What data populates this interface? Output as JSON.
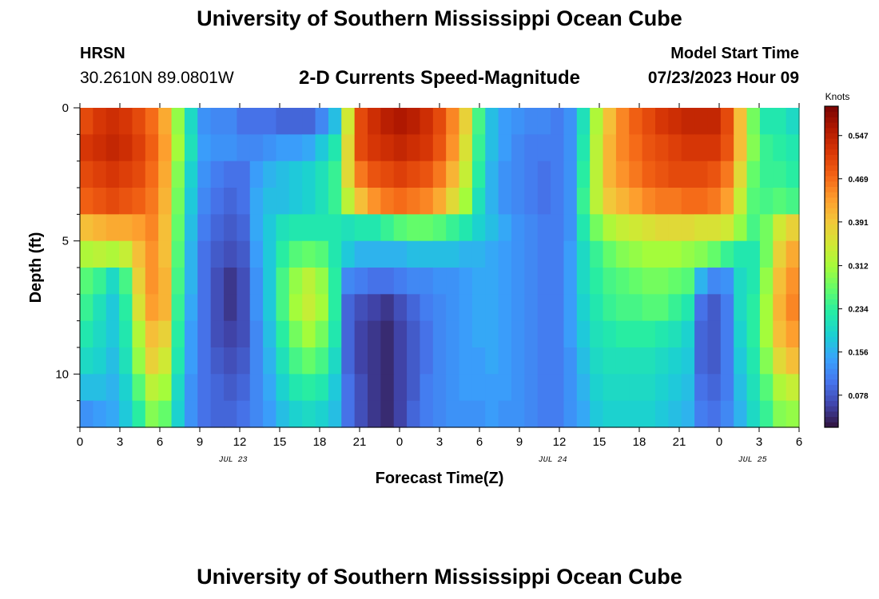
{
  "header": {
    "title": "University of Southern Mississippi Ocean Cube",
    "station": "HRSN",
    "coordinates": "30.2610N  89.0801W",
    "chart_title": "2-D Currents Speed-Magnitude",
    "model_start_label": "Model Start Time",
    "model_start_value": "07/23/2023 Hour 09"
  },
  "footer": {
    "title": "University of Southern Mississippi Ocean Cube"
  },
  "chart_data": {
    "type": "heatmap",
    "title": "2-D Currents Speed-Magnitude",
    "xlabel": "Forecast Time(Z)",
    "ylabel": "Depth (ft)",
    "colorbar_label": "Knots",
    "x_ticks": [
      "0",
      "3",
      "6",
      "9",
      "12",
      "15",
      "18",
      "21",
      "0",
      "3",
      "6",
      "9",
      "12",
      "15",
      "18",
      "21",
      "0",
      "3",
      "6"
    ],
    "x_range_hours": [
      0,
      54
    ],
    "date_labels": [
      {
        "text": "JUL 23",
        "hour": 11.5
      },
      {
        "text": "JUL 24",
        "hour": 35.5
      },
      {
        "text": "JUL 25",
        "hour": 50.5
      }
    ],
    "y_ticks": [
      0,
      5,
      10
    ],
    "y_range": [
      0,
      12
    ],
    "y_inverted": true,
    "colorbar_ticks": [
      0.078,
      0.156,
      0.234,
      0.312,
      0.391,
      0.469,
      0.547
    ],
    "colorbar_range": [
      0.02,
      0.6
    ],
    "colormap": [
      "#30123b",
      "#4145ab",
      "#4675ed",
      "#39a2fc",
      "#1bcfd4",
      "#24eca6",
      "#61fc6c",
      "#a4fc3b",
      "#d1e834",
      "#f3c63a",
      "#fe9b2d",
      "#f36315",
      "#d93806",
      "#b11901",
      "#7a0403"
    ],
    "depth_levels_ft": [
      0.5,
      1.5,
      2.5,
      3.5,
      4.5,
      5.5,
      6.5,
      7.5,
      8.5,
      9.5,
      10.5,
      11.5
    ],
    "speed_knots": [
      [
        0.5,
        0.52,
        0.53,
        0.52,
        0.5,
        0.47,
        0.42,
        0.3,
        0.2,
        0.13,
        0.12,
        0.12,
        0.1,
        0.1,
        0.1,
        0.09,
        0.09,
        0.09,
        0.12,
        0.17,
        0.35,
        0.5,
        0.53,
        0.55,
        0.56,
        0.55,
        0.53,
        0.5,
        0.45,
        0.38,
        0.25,
        0.17,
        0.14,
        0.13,
        0.12,
        0.12,
        0.11,
        0.13,
        0.21,
        0.32,
        0.4,
        0.45,
        0.48,
        0.5,
        0.52,
        0.53,
        0.54,
        0.54,
        0.54,
        0.5,
        0.4,
        0.28,
        0.22,
        0.22,
        0.2
      ],
      [
        0.52,
        0.53,
        0.54,
        0.53,
        0.51,
        0.48,
        0.43,
        0.31,
        0.21,
        0.14,
        0.13,
        0.13,
        0.12,
        0.12,
        0.13,
        0.14,
        0.14,
        0.15,
        0.18,
        0.22,
        0.37,
        0.5,
        0.52,
        0.53,
        0.54,
        0.53,
        0.52,
        0.49,
        0.44,
        0.36,
        0.24,
        0.17,
        0.14,
        0.12,
        0.11,
        0.11,
        0.11,
        0.13,
        0.22,
        0.33,
        0.41,
        0.45,
        0.47,
        0.49,
        0.5,
        0.51,
        0.52,
        0.52,
        0.52,
        0.49,
        0.4,
        0.29,
        0.24,
        0.23,
        0.22
      ],
      [
        0.5,
        0.51,
        0.52,
        0.51,
        0.5,
        0.47,
        0.42,
        0.29,
        0.19,
        0.13,
        0.11,
        0.1,
        0.1,
        0.14,
        0.16,
        0.17,
        0.18,
        0.19,
        0.21,
        0.24,
        0.37,
        0.46,
        0.49,
        0.5,
        0.51,
        0.5,
        0.49,
        0.46,
        0.41,
        0.34,
        0.23,
        0.16,
        0.13,
        0.12,
        0.11,
        0.1,
        0.11,
        0.13,
        0.23,
        0.33,
        0.41,
        0.44,
        0.46,
        0.48,
        0.49,
        0.5,
        0.5,
        0.5,
        0.49,
        0.46,
        0.37,
        0.27,
        0.24,
        0.24,
        0.23
      ],
      [
        0.48,
        0.49,
        0.5,
        0.49,
        0.48,
        0.46,
        0.41,
        0.28,
        0.18,
        0.12,
        0.1,
        0.09,
        0.1,
        0.15,
        0.17,
        0.17,
        0.18,
        0.19,
        0.21,
        0.24,
        0.33,
        0.4,
        0.44,
        0.46,
        0.47,
        0.46,
        0.45,
        0.42,
        0.37,
        0.31,
        0.21,
        0.16,
        0.13,
        0.12,
        0.11,
        0.1,
        0.11,
        0.13,
        0.24,
        0.33,
        0.39,
        0.41,
        0.43,
        0.45,
        0.46,
        0.46,
        0.47,
        0.47,
        0.46,
        0.43,
        0.34,
        0.26,
        0.25,
        0.26,
        0.25
      ],
      [
        0.4,
        0.41,
        0.42,
        0.42,
        0.43,
        0.45,
        0.4,
        0.27,
        0.17,
        0.11,
        0.09,
        0.08,
        0.09,
        0.15,
        0.18,
        0.21,
        0.22,
        0.22,
        0.22,
        0.22,
        0.21,
        0.22,
        0.22,
        0.24,
        0.26,
        0.27,
        0.27,
        0.26,
        0.24,
        0.22,
        0.19,
        0.17,
        0.15,
        0.13,
        0.12,
        0.11,
        0.11,
        0.13,
        0.22,
        0.28,
        0.32,
        0.34,
        0.35,
        0.36,
        0.37,
        0.37,
        0.37,
        0.36,
        0.36,
        0.35,
        0.3,
        0.25,
        0.28,
        0.35,
        0.38
      ],
      [
        0.32,
        0.33,
        0.32,
        0.34,
        0.4,
        0.44,
        0.4,
        0.26,
        0.16,
        0.1,
        0.08,
        0.07,
        0.08,
        0.14,
        0.18,
        0.23,
        0.26,
        0.27,
        0.26,
        0.22,
        0.18,
        0.16,
        0.16,
        0.16,
        0.16,
        0.17,
        0.17,
        0.17,
        0.17,
        0.16,
        0.16,
        0.15,
        0.14,
        0.13,
        0.12,
        0.11,
        0.11,
        0.14,
        0.2,
        0.24,
        0.27,
        0.29,
        0.3,
        0.31,
        0.31,
        0.31,
        0.3,
        0.29,
        0.27,
        0.24,
        0.22,
        0.22,
        0.28,
        0.38,
        0.42
      ],
      [
        0.26,
        0.24,
        0.2,
        0.25,
        0.38,
        0.44,
        0.41,
        0.25,
        0.16,
        0.1,
        0.07,
        0.05,
        0.07,
        0.13,
        0.18,
        0.25,
        0.3,
        0.33,
        0.3,
        0.23,
        0.12,
        0.11,
        0.1,
        0.1,
        0.11,
        0.12,
        0.12,
        0.13,
        0.13,
        0.14,
        0.15,
        0.15,
        0.14,
        0.13,
        0.12,
        0.11,
        0.11,
        0.14,
        0.2,
        0.23,
        0.25,
        0.26,
        0.27,
        0.28,
        0.28,
        0.27,
        0.26,
        0.16,
        0.12,
        0.13,
        0.2,
        0.22,
        0.3,
        0.4,
        0.44
      ],
      [
        0.24,
        0.21,
        0.18,
        0.23,
        0.36,
        0.43,
        0.41,
        0.24,
        0.15,
        0.1,
        0.07,
        0.05,
        0.07,
        0.13,
        0.18,
        0.25,
        0.31,
        0.34,
        0.31,
        0.23,
        0.09,
        0.07,
        0.06,
        0.05,
        0.07,
        0.09,
        0.11,
        0.12,
        0.13,
        0.14,
        0.15,
        0.15,
        0.14,
        0.13,
        0.12,
        0.11,
        0.11,
        0.14,
        0.19,
        0.22,
        0.24,
        0.25,
        0.25,
        0.26,
        0.26,
        0.24,
        0.22,
        0.1,
        0.08,
        0.11,
        0.2,
        0.23,
        0.31,
        0.41,
        0.45
      ],
      [
        0.22,
        0.2,
        0.18,
        0.22,
        0.32,
        0.4,
        0.38,
        0.23,
        0.14,
        0.1,
        0.07,
        0.06,
        0.07,
        0.12,
        0.17,
        0.23,
        0.28,
        0.31,
        0.28,
        0.22,
        0.09,
        0.06,
        0.05,
        0.04,
        0.06,
        0.08,
        0.1,
        0.12,
        0.13,
        0.14,
        0.15,
        0.15,
        0.14,
        0.13,
        0.12,
        0.11,
        0.11,
        0.14,
        0.18,
        0.21,
        0.22,
        0.23,
        0.23,
        0.23,
        0.22,
        0.21,
        0.19,
        0.09,
        0.08,
        0.11,
        0.19,
        0.23,
        0.31,
        0.4,
        0.43
      ],
      [
        0.2,
        0.19,
        0.17,
        0.21,
        0.3,
        0.38,
        0.35,
        0.22,
        0.14,
        0.1,
        0.08,
        0.07,
        0.08,
        0.12,
        0.16,
        0.21,
        0.25,
        0.27,
        0.25,
        0.2,
        0.09,
        0.06,
        0.05,
        0.04,
        0.06,
        0.08,
        0.1,
        0.12,
        0.13,
        0.14,
        0.14,
        0.15,
        0.14,
        0.13,
        0.12,
        0.11,
        0.11,
        0.13,
        0.17,
        0.2,
        0.21,
        0.21,
        0.21,
        0.21,
        0.2,
        0.19,
        0.18,
        0.09,
        0.08,
        0.11,
        0.18,
        0.22,
        0.29,
        0.37,
        0.4
      ],
      [
        0.17,
        0.17,
        0.16,
        0.19,
        0.26,
        0.33,
        0.31,
        0.2,
        0.13,
        0.1,
        0.09,
        0.08,
        0.09,
        0.12,
        0.15,
        0.19,
        0.22,
        0.23,
        0.22,
        0.18,
        0.1,
        0.07,
        0.05,
        0.04,
        0.06,
        0.08,
        0.11,
        0.12,
        0.13,
        0.14,
        0.14,
        0.14,
        0.14,
        0.13,
        0.12,
        0.11,
        0.11,
        0.13,
        0.16,
        0.19,
        0.2,
        0.2,
        0.2,
        0.2,
        0.19,
        0.18,
        0.17,
        0.1,
        0.09,
        0.11,
        0.17,
        0.21,
        0.26,
        0.32,
        0.34
      ],
      [
        0.13,
        0.14,
        0.15,
        0.18,
        0.23,
        0.29,
        0.27,
        0.19,
        0.13,
        0.1,
        0.09,
        0.09,
        0.1,
        0.12,
        0.14,
        0.17,
        0.19,
        0.2,
        0.19,
        0.17,
        0.1,
        0.07,
        0.05,
        0.04,
        0.06,
        0.09,
        0.11,
        0.12,
        0.13,
        0.13,
        0.13,
        0.14,
        0.13,
        0.13,
        0.12,
        0.11,
        0.11,
        0.13,
        0.15,
        0.18,
        0.19,
        0.19,
        0.19,
        0.19,
        0.18,
        0.17,
        0.16,
        0.11,
        0.1,
        0.12,
        0.16,
        0.2,
        0.24,
        0.29,
        0.3
      ]
    ]
  }
}
